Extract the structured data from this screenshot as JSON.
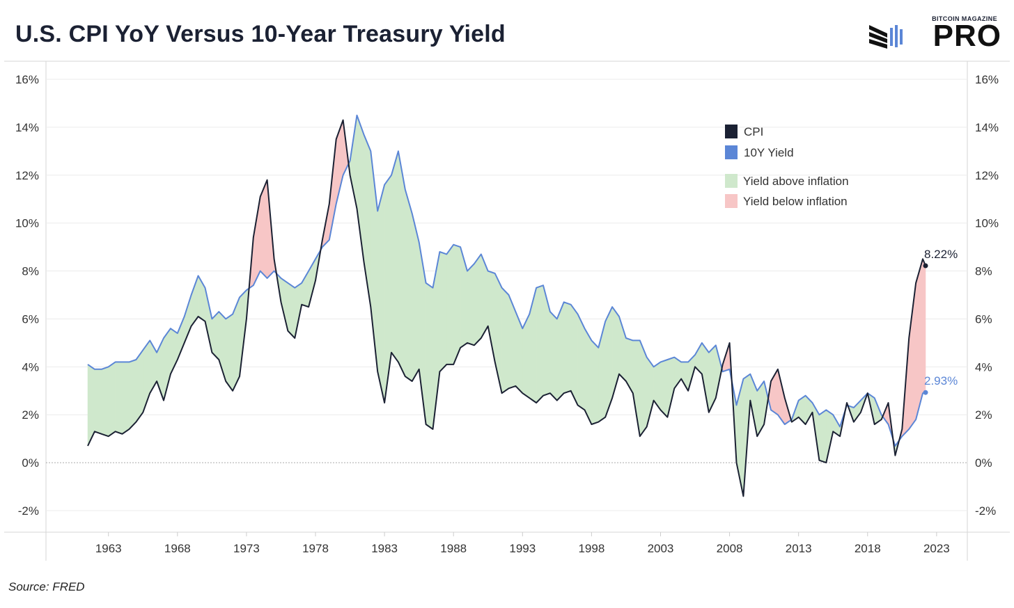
{
  "title": "U.S. CPI YoY Versus 10-Year Treasury Yield",
  "logo": {
    "top_text": "BITCOIN MAGAZINE",
    "main_text": "PRO"
  },
  "source": "Source: FRED",
  "colors": {
    "cpi": "#1b2133",
    "yield": "#5b86d6",
    "above_fill": "#cfe8cc",
    "below_fill": "#f7c6c6",
    "grid": "#ebebeb",
    "zero": "#aaaaaa"
  },
  "chart_data": {
    "type": "line",
    "title": "U.S. CPI YoY Versus 10-Year Treasury Yield",
    "xlabel": "",
    "ylabel": "",
    "xlim": [
      1960.7,
      2025.0
    ],
    "ylim": [
      -2.9,
      16.6
    ],
    "x_ticks": [
      1963,
      1968,
      1973,
      1978,
      1983,
      1988,
      1993,
      1998,
      2003,
      2008,
      2013,
      2018,
      2023
    ],
    "y_ticks": [
      16,
      14,
      12,
      10,
      8,
      6,
      4,
      2,
      0,
      -2
    ],
    "y_tick_labels": [
      "16%",
      "14%",
      "12%",
      "10%",
      "8%",
      "6%",
      "4%",
      "2%",
      "0%",
      "-2%"
    ],
    "grid": true,
    "legend_position": "top-right",
    "legend": [
      {
        "label": "CPI",
        "kind": "line",
        "color": "#1b2133"
      },
      {
        "label": "10Y Yield",
        "kind": "line",
        "color": "#5b86d6"
      },
      {
        "label": "Yield above inflation",
        "kind": "fill",
        "color": "#cfe8cc"
      },
      {
        "label": "Yield below inflation",
        "kind": "fill",
        "color": "#f7c6c6"
      }
    ],
    "end_labels": [
      {
        "series": "CPI",
        "text": "8.22%",
        "x": 2022.7,
        "y": 8.22
      },
      {
        "series": "10Y Yield",
        "text": "2.93%",
        "x": 2022.7,
        "y": 2.93
      }
    ],
    "series": [
      {
        "name": "CPI",
        "x": [
          1962.0,
          1962.5,
          1963.0,
          1963.5,
          1964.0,
          1964.5,
          1965.0,
          1965.5,
          1966.0,
          1966.5,
          1967.0,
          1967.5,
          1968.0,
          1968.5,
          1969.0,
          1969.5,
          1970.0,
          1970.5,
          1971.0,
          1971.5,
          1972.0,
          1972.5,
          1973.0,
          1973.5,
          1974.0,
          1974.5,
          1975.0,
          1975.5,
          1976.0,
          1976.5,
          1977.0,
          1977.5,
          1978.0,
          1978.5,
          1979.0,
          1979.5,
          1980.0,
          1980.5,
          1981.0,
          1981.5,
          1982.0,
          1982.5,
          1983.0,
          1983.5,
          1984.0,
          1984.5,
          1985.0,
          1985.5,
          1986.0,
          1986.5,
          1987.0,
          1987.5,
          1988.0,
          1988.5,
          1989.0,
          1989.5,
          1990.0,
          1990.5,
          1991.0,
          1991.5,
          1992.0,
          1992.5,
          1993.0,
          1993.5,
          1994.0,
          1994.5,
          1995.0,
          1995.5,
          1996.0,
          1996.5,
          1997.0,
          1997.5,
          1998.0,
          1998.5,
          1999.0,
          1999.5,
          2000.0,
          2000.5,
          2001.0,
          2001.5,
          2002.0,
          2002.5,
          2003.0,
          2003.5,
          2004.0,
          2004.5,
          2005.0,
          2005.5,
          2006.0,
          2006.5,
          2007.0,
          2007.5,
          2008.0,
          2008.5,
          2009.0,
          2009.5,
          2010.0,
          2010.5,
          2011.0,
          2011.5,
          2012.0,
          2012.5,
          2013.0,
          2013.5,
          2014.0,
          2014.5,
          2015.0,
          2015.5,
          2016.0,
          2016.5,
          2017.0,
          2017.5,
          2018.0,
          2018.5,
          2019.0,
          2019.5,
          2020.0,
          2020.5,
          2021.0,
          2021.5,
          2022.0,
          2022.5,
          2022.7
        ],
        "values": [
          0.7,
          1.3,
          1.2,
          1.1,
          1.3,
          1.2,
          1.4,
          1.7,
          2.1,
          2.9,
          3.4,
          2.6,
          3.7,
          4.3,
          5.0,
          5.7,
          6.1,
          5.9,
          4.6,
          4.3,
          3.4,
          3.0,
          3.6,
          6.0,
          9.4,
          11.1,
          11.8,
          8.5,
          6.7,
          5.5,
          5.2,
          6.6,
          6.5,
          7.6,
          9.3,
          10.8,
          13.5,
          14.3,
          12.0,
          10.6,
          8.4,
          6.5,
          3.8,
          2.5,
          4.6,
          4.2,
          3.6,
          3.4,
          3.9,
          1.6,
          1.4,
          3.8,
          4.1,
          4.1,
          4.8,
          5.0,
          4.9,
          5.2,
          5.7,
          4.2,
          2.9,
          3.1,
          3.2,
          2.9,
          2.7,
          2.5,
          2.8,
          2.9,
          2.6,
          2.9,
          3.0,
          2.4,
          2.2,
          1.6,
          1.7,
          1.9,
          2.7,
          3.7,
          3.4,
          2.9,
          1.1,
          1.5,
          2.6,
          2.2,
          1.9,
          3.1,
          3.5,
          3.0,
          4.0,
          3.7,
          2.1,
          2.7,
          4.1,
          5.0,
          0.0,
          -1.4,
          2.6,
          1.1,
          1.6,
          3.4,
          3.9,
          2.7,
          1.7,
          1.9,
          1.6,
          2.1,
          0.1,
          0.0,
          1.3,
          1.1,
          2.5,
          1.7,
          2.1,
          2.9,
          1.6,
          1.8,
          2.5,
          0.3,
          1.4,
          5.2,
          7.5,
          8.5,
          8.22
        ]
      },
      {
        "name": "10Y Yield",
        "x": [
          1962.0,
          1962.5,
          1963.0,
          1963.5,
          1964.0,
          1964.5,
          1965.0,
          1965.5,
          1966.0,
          1966.5,
          1967.0,
          1967.5,
          1968.0,
          1968.5,
          1969.0,
          1969.5,
          1970.0,
          1970.5,
          1971.0,
          1971.5,
          1972.0,
          1972.5,
          1973.0,
          1973.5,
          1974.0,
          1974.5,
          1975.0,
          1975.5,
          1976.0,
          1976.5,
          1977.0,
          1977.5,
          1978.0,
          1978.5,
          1979.0,
          1979.5,
          1980.0,
          1980.5,
          1981.0,
          1981.5,
          1982.0,
          1982.5,
          1983.0,
          1983.5,
          1984.0,
          1984.5,
          1985.0,
          1985.5,
          1986.0,
          1986.5,
          1987.0,
          1987.5,
          1988.0,
          1988.5,
          1989.0,
          1989.5,
          1990.0,
          1990.5,
          1991.0,
          1991.5,
          1992.0,
          1992.5,
          1993.0,
          1993.5,
          1994.0,
          1994.5,
          1995.0,
          1995.5,
          1996.0,
          1996.5,
          1997.0,
          1997.5,
          1998.0,
          1998.5,
          1999.0,
          1999.5,
          2000.0,
          2000.5,
          2001.0,
          2001.5,
          2002.0,
          2002.5,
          2003.0,
          2003.5,
          2004.0,
          2004.5,
          2005.0,
          2005.5,
          2006.0,
          2006.5,
          2007.0,
          2007.5,
          2008.0,
          2008.5,
          2009.0,
          2009.5,
          2010.0,
          2010.5,
          2011.0,
          2011.5,
          2012.0,
          2012.5,
          2013.0,
          2013.5,
          2014.0,
          2014.5,
          2015.0,
          2015.5,
          2016.0,
          2016.5,
          2017.0,
          2017.5,
          2018.0,
          2018.5,
          2019.0,
          2019.5,
          2020.0,
          2020.5,
          2021.0,
          2021.5,
          2022.0,
          2022.5,
          2022.7
        ],
        "values": [
          4.1,
          3.9,
          3.9,
          4.0,
          4.2,
          4.2,
          4.2,
          4.3,
          4.7,
          5.1,
          4.6,
          5.2,
          5.6,
          5.4,
          6.1,
          7.0,
          7.8,
          7.3,
          6.0,
          6.3,
          6.0,
          6.2,
          6.9,
          7.2,
          7.4,
          8.0,
          7.7,
          8.0,
          7.7,
          7.5,
          7.3,
          7.5,
          8.0,
          8.5,
          9.0,
          9.3,
          10.8,
          12.0,
          12.6,
          14.5,
          13.7,
          13.0,
          10.5,
          11.6,
          12.0,
          13.0,
          11.4,
          10.4,
          9.2,
          7.5,
          7.3,
          8.8,
          8.7,
          9.1,
          9.0,
          8.0,
          8.3,
          8.7,
          8.0,
          7.9,
          7.3,
          7.0,
          6.3,
          5.6,
          6.2,
          7.3,
          7.4,
          6.3,
          6.0,
          6.7,
          6.6,
          6.2,
          5.6,
          5.1,
          4.8,
          5.9,
          6.5,
          6.1,
          5.2,
          5.1,
          5.1,
          4.4,
          4.0,
          4.2,
          4.3,
          4.4,
          4.2,
          4.2,
          4.5,
          5.0,
          4.6,
          4.9,
          3.8,
          3.9,
          2.4,
          3.5,
          3.7,
          3.0,
          3.4,
          2.2,
          2.0,
          1.6,
          1.8,
          2.6,
          2.8,
          2.5,
          2.0,
          2.2,
          2.0,
          1.5,
          2.4,
          2.3,
          2.6,
          2.9,
          2.7,
          2.0,
          1.6,
          0.7,
          1.1,
          1.4,
          1.8,
          2.9,
          2.93
        ]
      }
    ]
  }
}
